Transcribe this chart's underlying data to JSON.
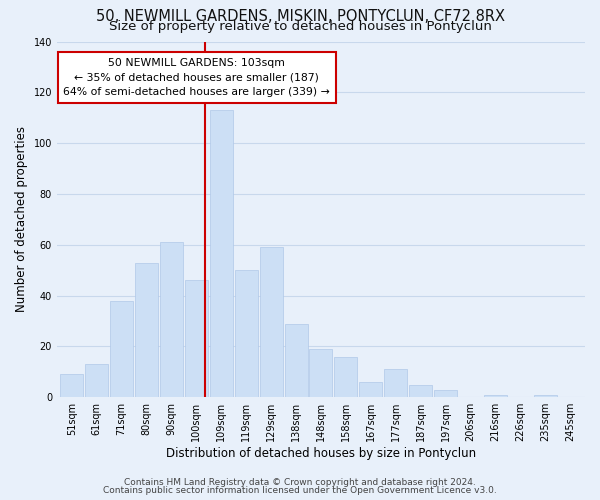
{
  "title": "50, NEWMILL GARDENS, MISKIN, PONTYCLUN, CF72 8RX",
  "subtitle": "Size of property relative to detached houses in Pontyclun",
  "xlabel": "Distribution of detached houses by size in Pontyclun",
  "ylabel": "Number of detached properties",
  "bar_labels": [
    "51sqm",
    "61sqm",
    "71sqm",
    "80sqm",
    "90sqm",
    "100sqm",
    "109sqm",
    "119sqm",
    "129sqm",
    "138sqm",
    "148sqm",
    "158sqm",
    "167sqm",
    "177sqm",
    "187sqm",
    "197sqm",
    "206sqm",
    "216sqm",
    "226sqm",
    "235sqm",
    "245sqm"
  ],
  "bar_values": [
    9,
    13,
    38,
    53,
    61,
    46,
    113,
    50,
    59,
    29,
    19,
    16,
    6,
    11,
    5,
    3,
    0,
    1,
    0,
    1,
    0
  ],
  "bar_color": "#ccdff5",
  "bar_edge_color": "#b0c8e8",
  "vline_color": "#cc0000",
  "annotation_title": "50 NEWMILL GARDENS: 103sqm",
  "annotation_line1": "← 35% of detached houses are smaller (187)",
  "annotation_line2": "64% of semi-detached houses are larger (339) →",
  "annotation_box_color": "#ffffff",
  "annotation_box_edge": "#cc0000",
  "ylim": [
    0,
    140
  ],
  "yticks": [
    0,
    20,
    40,
    60,
    80,
    100,
    120,
    140
  ],
  "footer1": "Contains HM Land Registry data © Crown copyright and database right 2024.",
  "footer2": "Contains public sector information licensed under the Open Government Licence v3.0.",
  "bg_color": "#e8f0fa",
  "plot_bg_color": "#e8f0fa",
  "grid_color": "#c8d8ec",
  "title_fontsize": 10.5,
  "subtitle_fontsize": 9.5,
  "axis_label_fontsize": 8.5,
  "tick_fontsize": 7,
  "footer_fontsize": 6.5
}
